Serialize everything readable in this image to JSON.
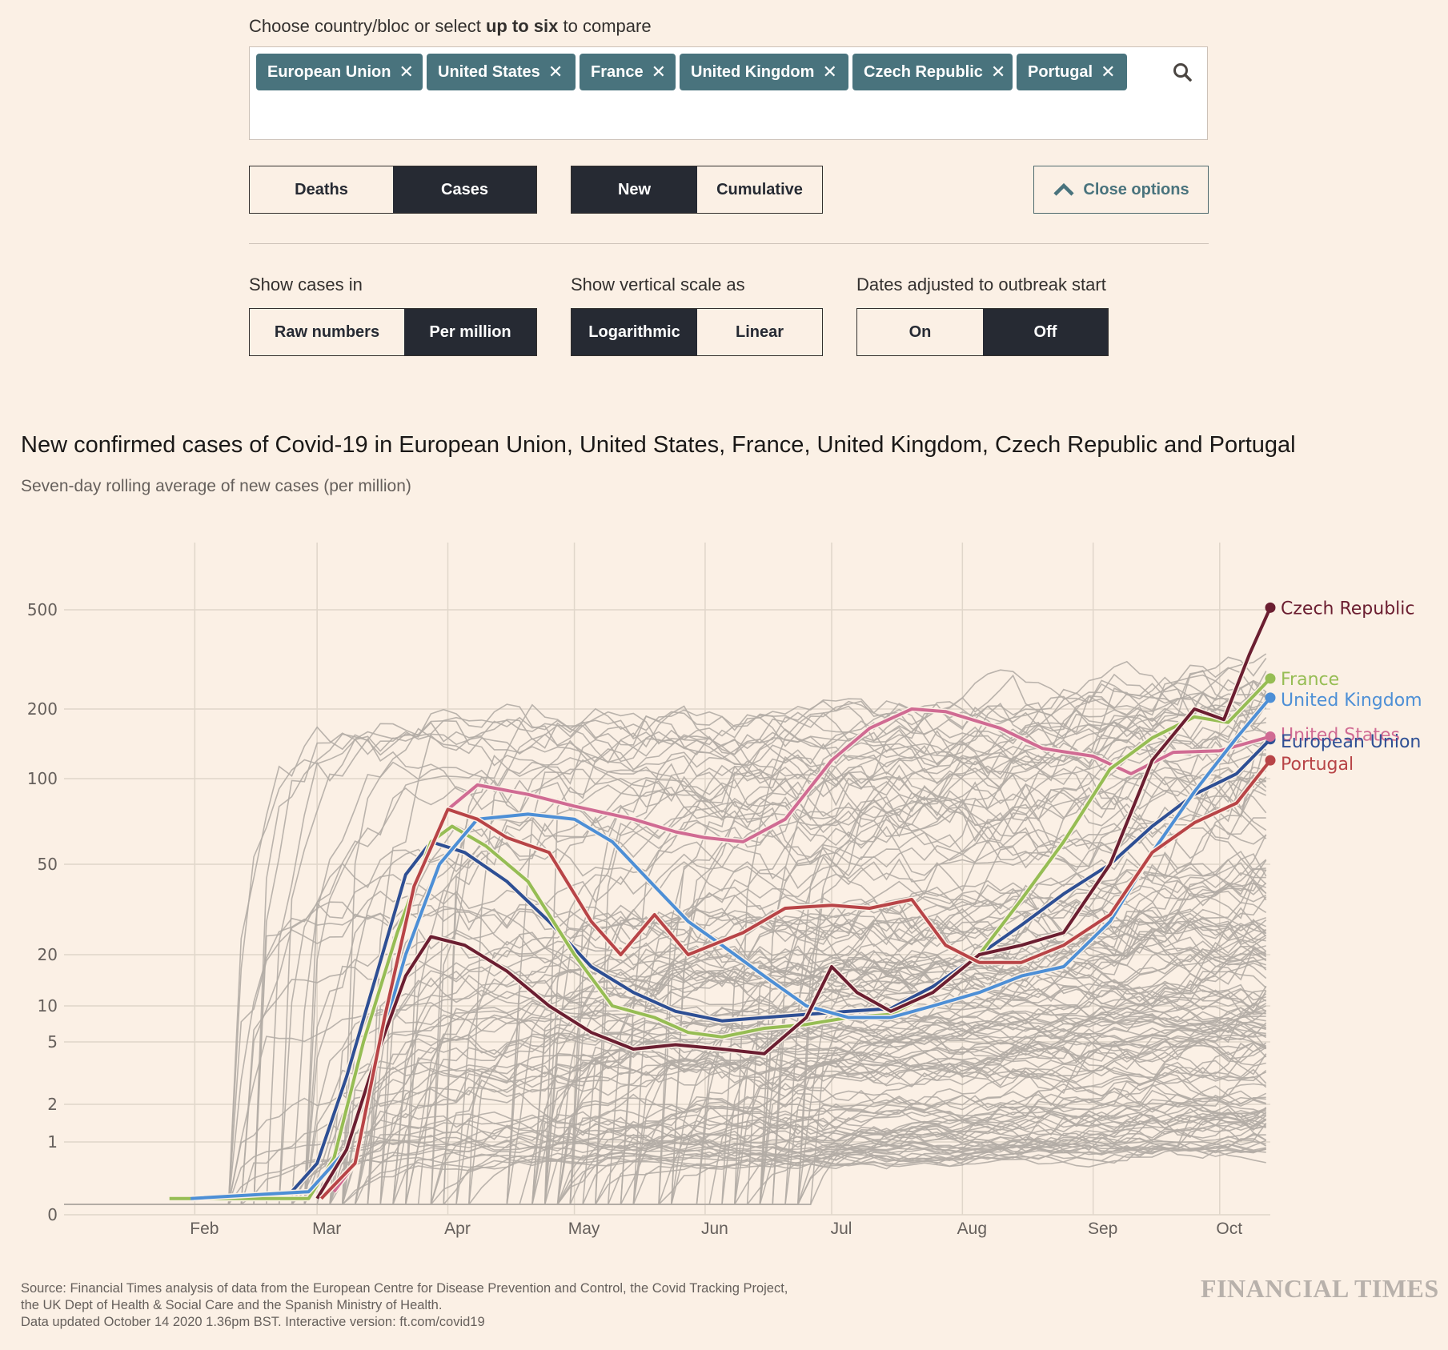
{
  "controls": {
    "prompt_pre": "Choose country/bloc or select ",
    "prompt_bold": "up to six",
    "prompt_post": " to compare",
    "chips": [
      "European Union",
      "United States",
      "France",
      "United Kingdom",
      "Czech Republic",
      "Portugal"
    ],
    "chip_close_glyph": "✕",
    "search_icon": "search-icon",
    "metric": {
      "options": [
        "Deaths",
        "Cases"
      ],
      "selected": "Cases"
    },
    "mode": {
      "options": [
        "New",
        "Cumulative"
      ],
      "selected": "New"
    },
    "close_options_label": "Close options",
    "close_options_icon": "chevron-up-icon",
    "show_cases_in": {
      "label": "Show cases in",
      "options": [
        "Raw numbers",
        "Per million"
      ],
      "selected": "Per million"
    },
    "vertical_scale": {
      "label": "Show vertical scale as",
      "options": [
        "Logarithmic",
        "Linear"
      ],
      "selected": "Logarithmic"
    },
    "dates_adjusted": {
      "label": "Dates adjusted to outbreak start",
      "options": [
        "On",
        "Off"
      ],
      "selected": "Off"
    }
  },
  "footer": {
    "source_line1": "Source: Financial Times analysis of data from the European Centre for Disease Prevention and Control, the Covid Tracking Project,",
    "source_line2": "the UK Dept of Health & Social Care and the Spanish Ministry of Health.",
    "source_line3": "Data updated October 14 2020 1.36pm BST. Interactive version: ft.com/covid19",
    "logo": "FINANCIAL TIMES"
  },
  "chart_data": {
    "type": "line",
    "title": "New confirmed cases of Covid-19 in European Union, United States, France, United Kingdom, Czech Republic and Portugal",
    "subtitle": "Seven-day rolling average of new cases (per million)",
    "xlabel": "",
    "ylabel": "",
    "yscale": "symlog",
    "yticks": [
      0,
      1,
      2,
      5,
      10,
      20,
      50,
      100,
      200,
      500
    ],
    "ylim": [
      0,
      600
    ],
    "xticks": [
      "Feb",
      "Mar",
      "Apr",
      "May",
      "Jun",
      "Jul",
      "Aug",
      "Sep",
      "Oct"
    ],
    "x_start": "2020-01-01",
    "x_end": "2020-10-13",
    "grid": true,
    "background_series_note": "Grey lines for all other countries",
    "series": [
      {
        "name": "European Union",
        "color": "#2e4f94",
        "points": [
          [
            "2020-02-24",
            0.1
          ],
          [
            "2020-03-01",
            0.5
          ],
          [
            "2020-03-08",
            3
          ],
          [
            "2020-03-15",
            15
          ],
          [
            "2020-03-22",
            45
          ],
          [
            "2020-03-28",
            60
          ],
          [
            "2020-04-05",
            55
          ],
          [
            "2020-04-15",
            42
          ],
          [
            "2020-04-25",
            28
          ],
          [
            "2020-05-05",
            17
          ],
          [
            "2020-05-15",
            12
          ],
          [
            "2020-05-25",
            9
          ],
          [
            "2020-06-05",
            7.5
          ],
          [
            "2020-06-15",
            8
          ],
          [
            "2020-06-25",
            8.5
          ],
          [
            "2020-07-05",
            9
          ],
          [
            "2020-07-15",
            9.5
          ],
          [
            "2020-07-25",
            13
          ],
          [
            "2020-08-05",
            20
          ],
          [
            "2020-08-15",
            27
          ],
          [
            "2020-08-25",
            37
          ],
          [
            "2020-09-05",
            50
          ],
          [
            "2020-09-15",
            68
          ],
          [
            "2020-09-25",
            88
          ],
          [
            "2020-10-05",
            105
          ],
          [
            "2020-10-13",
            148
          ]
        ]
      },
      {
        "name": "United States",
        "color": "#d06b93",
        "points": [
          [
            "2020-03-05",
            0.1
          ],
          [
            "2020-03-10",
            0.5
          ],
          [
            "2020-03-17",
            8
          ],
          [
            "2020-03-24",
            40
          ],
          [
            "2020-04-01",
            78
          ],
          [
            "2020-04-08",
            95
          ],
          [
            "2020-04-20",
            88
          ],
          [
            "2020-05-01",
            80
          ],
          [
            "2020-05-15",
            72
          ],
          [
            "2020-05-25",
            65
          ],
          [
            "2020-06-01",
            62
          ],
          [
            "2020-06-10",
            60
          ],
          [
            "2020-06-20",
            72
          ],
          [
            "2020-07-01",
            120
          ],
          [
            "2020-07-10",
            165
          ],
          [
            "2020-07-20",
            200
          ],
          [
            "2020-07-28",
            195
          ],
          [
            "2020-08-10",
            165
          ],
          [
            "2020-08-20",
            135
          ],
          [
            "2020-09-01",
            125
          ],
          [
            "2020-09-10",
            105
          ],
          [
            "2020-09-20",
            130
          ],
          [
            "2020-10-01",
            132
          ],
          [
            "2020-10-13",
            152
          ]
        ]
      },
      {
        "name": "France",
        "color": "#96bd54",
        "points": [
          [
            "2020-01-26",
            0.05
          ],
          [
            "2020-02-28",
            0.05
          ],
          [
            "2020-03-05",
            0.6
          ],
          [
            "2020-03-12",
            5
          ],
          [
            "2020-03-20",
            25
          ],
          [
            "2020-03-28",
            60
          ],
          [
            "2020-04-02",
            68
          ],
          [
            "2020-04-10",
            58
          ],
          [
            "2020-04-20",
            42
          ],
          [
            "2020-05-01",
            20
          ],
          [
            "2020-05-10",
            10
          ],
          [
            "2020-05-20",
            8
          ],
          [
            "2020-05-28",
            6
          ],
          [
            "2020-06-05",
            5.5
          ],
          [
            "2020-06-15",
            6.5
          ],
          [
            "2020-06-25",
            7
          ],
          [
            "2020-07-05",
            8
          ],
          [
            "2020-07-15",
            8.5
          ],
          [
            "2020-07-25",
            12
          ],
          [
            "2020-08-05",
            20
          ],
          [
            "2020-08-15",
            35
          ],
          [
            "2020-08-25",
            60
          ],
          [
            "2020-09-05",
            110
          ],
          [
            "2020-09-15",
            150
          ],
          [
            "2020-09-25",
            185
          ],
          [
            "2020-10-03",
            175
          ],
          [
            "2020-10-13",
            265
          ]
        ]
      },
      {
        "name": "United Kingdom",
        "color": "#4d8fd6",
        "points": [
          [
            "2020-01-31",
            0.05
          ],
          [
            "2020-02-28",
            0.1
          ],
          [
            "2020-03-08",
            0.8
          ],
          [
            "2020-03-15",
            4
          ],
          [
            "2020-03-22",
            20
          ],
          [
            "2020-03-30",
            50
          ],
          [
            "2020-04-08",
            72
          ],
          [
            "2020-04-20",
            75
          ],
          [
            "2020-05-01",
            72
          ],
          [
            "2020-05-10",
            60
          ],
          [
            "2020-05-20",
            40
          ],
          [
            "2020-05-28",
            28
          ],
          [
            "2020-06-05",
            22
          ],
          [
            "2020-06-15",
            15
          ],
          [
            "2020-06-25",
            10
          ],
          [
            "2020-07-05",
            8
          ],
          [
            "2020-07-15",
            8
          ],
          [
            "2020-07-25",
            10
          ],
          [
            "2020-08-05",
            12
          ],
          [
            "2020-08-15",
            15
          ],
          [
            "2020-08-25",
            17
          ],
          [
            "2020-09-05",
            28
          ],
          [
            "2020-09-15",
            55
          ],
          [
            "2020-09-25",
            90
          ],
          [
            "2020-10-05",
            150
          ],
          [
            "2020-10-13",
            222
          ]
        ]
      },
      {
        "name": "Czech Republic",
        "color": "#6b1e31",
        "points": [
          [
            "2020-03-01",
            0.05
          ],
          [
            "2020-03-08",
            0.8
          ],
          [
            "2020-03-15",
            4
          ],
          [
            "2020-03-22",
            15
          ],
          [
            "2020-03-28",
            24
          ],
          [
            "2020-04-05",
            22
          ],
          [
            "2020-04-15",
            16
          ],
          [
            "2020-04-25",
            10
          ],
          [
            "2020-05-05",
            6
          ],
          [
            "2020-05-15",
            4.5
          ],
          [
            "2020-05-25",
            4.8
          ],
          [
            "2020-06-05",
            4.5
          ],
          [
            "2020-06-15",
            4.2
          ],
          [
            "2020-06-25",
            8
          ],
          [
            "2020-07-01",
            17
          ],
          [
            "2020-07-07",
            12
          ],
          [
            "2020-07-15",
            9
          ],
          [
            "2020-07-25",
            12
          ],
          [
            "2020-08-05",
            20
          ],
          [
            "2020-08-15",
            22
          ],
          [
            "2020-08-25",
            25
          ],
          [
            "2020-09-05",
            50
          ],
          [
            "2020-09-15",
            120
          ],
          [
            "2020-09-25",
            200
          ],
          [
            "2020-10-02",
            180
          ],
          [
            "2020-10-08",
            330
          ],
          [
            "2020-10-13",
            510
          ]
        ]
      },
      {
        "name": "Portugal",
        "color": "#b84447",
        "points": [
          [
            "2020-03-02",
            0.05
          ],
          [
            "2020-03-10",
            0.5
          ],
          [
            "2020-03-17",
            8
          ],
          [
            "2020-03-24",
            40
          ],
          [
            "2020-04-01",
            78
          ],
          [
            "2020-04-08",
            72
          ],
          [
            "2020-04-15",
            62
          ],
          [
            "2020-04-25",
            55
          ],
          [
            "2020-05-05",
            28
          ],
          [
            "2020-05-12",
            20
          ],
          [
            "2020-05-20",
            30
          ],
          [
            "2020-05-28",
            20
          ],
          [
            "2020-06-10",
            25
          ],
          [
            "2020-06-20",
            32
          ],
          [
            "2020-07-01",
            33
          ],
          [
            "2020-07-10",
            32
          ],
          [
            "2020-07-20",
            35
          ],
          [
            "2020-07-28",
            22
          ],
          [
            "2020-08-05",
            18
          ],
          [
            "2020-08-15",
            18
          ],
          [
            "2020-08-25",
            22
          ],
          [
            "2020-09-05",
            30
          ],
          [
            "2020-09-15",
            55
          ],
          [
            "2020-09-25",
            70
          ],
          [
            "2020-10-05",
            82
          ],
          [
            "2020-10-13",
            120
          ]
        ]
      }
    ],
    "end_labels": [
      "Czech Republic",
      "France",
      "United Kingdom",
      "United States",
      "European Union",
      "Portugal"
    ]
  }
}
